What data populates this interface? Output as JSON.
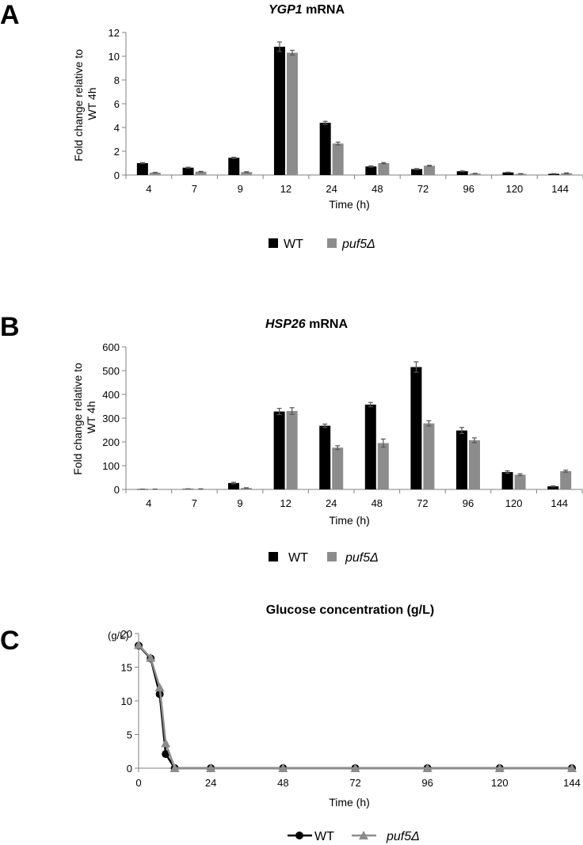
{
  "colors": {
    "wt": "#000000",
    "puf5": "#8c8c8c",
    "axis": "#808080"
  },
  "legend": {
    "wt": "WT",
    "puf5": "puf5Δ"
  },
  "panels": [
    {
      "letter": "A",
      "title_gene": "YGP1",
      "title_rest": " mRNA",
      "ylabel_line1": "Fold change relative to",
      "ylabel_line2": "WT 4h",
      "xlabel": "Time (h)"
    },
    {
      "letter": "B",
      "title_gene": "HSP26",
      "title_rest": " mRNA",
      "ylabel_line1": "Fold change relative to",
      "ylabel_line2": "WT 4h",
      "xlabel": "Time (h)"
    },
    {
      "letter": "C",
      "title": "Glucose concentration (g/L)",
      "yunit": "(g/L)",
      "xlabel": "Time (h)"
    }
  ],
  "chart_data": [
    {
      "type": "bar",
      "title": "YGP1 mRNA",
      "xlabel": "Time (h)",
      "ylabel": "Fold change relative to WT 4h",
      "ylim": [
        0,
        12
      ],
      "yticks": [
        0,
        2,
        4,
        6,
        8,
        10,
        12
      ],
      "categories": [
        "4",
        "7",
        "9",
        "12",
        "24",
        "48",
        "72",
        "96",
        "120",
        "144"
      ],
      "series": [
        {
          "name": "WT",
          "values": [
            1.0,
            0.62,
            1.45,
            10.8,
            4.4,
            0.72,
            0.5,
            0.32,
            0.22,
            0.1
          ],
          "errors": [
            0.04,
            0.04,
            0.05,
            0.4,
            0.12,
            0.05,
            0.04,
            0.03,
            0.02,
            0.02
          ]
        },
        {
          "name": "puf5Δ",
          "values": [
            0.2,
            0.28,
            0.25,
            10.3,
            2.65,
            1.0,
            0.78,
            0.12,
            0.1,
            0.15
          ],
          "errors": [
            0.02,
            0.03,
            0.03,
            0.2,
            0.12,
            0.05,
            0.04,
            0.02,
            0.02,
            0.03
          ]
        }
      ],
      "legend_position": "bottom"
    },
    {
      "type": "bar",
      "title": "HSP26 mRNA",
      "xlabel": "Time (h)",
      "ylabel": "Fold change relative to WT 4h",
      "ylim": [
        0,
        600
      ],
      "yticks": [
        0,
        100,
        200,
        300,
        400,
        500,
        600
      ],
      "categories": [
        "4",
        "7",
        "9",
        "12",
        "24",
        "48",
        "72",
        "96",
        "120",
        "144"
      ],
      "series": [
        {
          "name": "WT",
          "values": [
            1,
            2,
            27,
            328,
            268,
            357,
            515,
            248,
            73,
            13
          ],
          "errors": [
            0.5,
            0.5,
            3,
            13,
            7,
            9,
            22,
            13,
            5,
            2
          ]
        },
        {
          "name": "puf5Δ",
          "values": [
            1,
            2,
            6,
            330,
            176,
            195,
            278,
            207,
            62,
            77
          ],
          "errors": [
            0.5,
            0.5,
            1,
            14,
            8,
            17,
            11,
            10,
            4,
            4
          ]
        }
      ],
      "legend_position": "bottom"
    },
    {
      "type": "line",
      "title": "Glucose concentration (g/L)",
      "xlabel": "Time (h)",
      "ylabel": "(g/L)",
      "xlim": [
        0,
        144
      ],
      "ylim": [
        0,
        20
      ],
      "xticks": [
        0,
        24,
        48,
        72,
        96,
        120,
        144
      ],
      "yticks": [
        0,
        5,
        10,
        15,
        20
      ],
      "series": [
        {
          "name": "WT",
          "marker": "circle",
          "x": [
            0,
            4,
            7,
            9,
            12,
            24,
            48,
            72,
            96,
            120,
            144
          ],
          "y": [
            18.2,
            16.3,
            11.0,
            2.1,
            0,
            0,
            0,
            0,
            0,
            0,
            0
          ]
        },
        {
          "name": "puf5Δ",
          "marker": "triangle",
          "x": [
            0,
            4,
            7,
            9,
            12,
            24,
            48,
            72,
            96,
            120,
            144
          ],
          "y": [
            18.3,
            16.4,
            12.0,
            3.7,
            0,
            0,
            0,
            0,
            0,
            0,
            0
          ]
        }
      ],
      "legend_position": "bottom"
    }
  ]
}
